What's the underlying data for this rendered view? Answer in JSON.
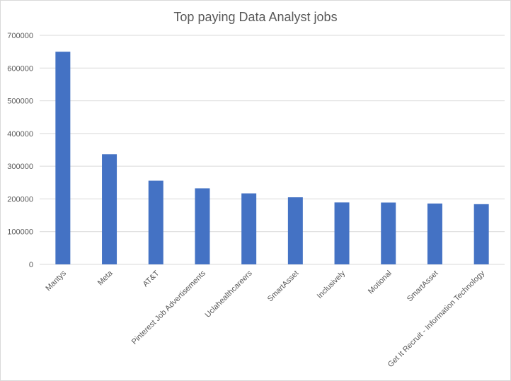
{
  "chart_data": {
    "type": "bar",
    "title": "Top paying Data Analyst jobs",
    "xlabel": "",
    "ylabel": "",
    "categories": [
      "Mantys",
      "Meta",
      "AT&T",
      "Pinterest Job Advertisements",
      "Uclahealthcareers",
      "SmartAsset",
      "Inclusively",
      "Motional",
      "SmartAsset",
      "Get It Recruit - Information Technology"
    ],
    "values": [
      650000,
      336500,
      255830,
      232423,
      217000,
      205000,
      189309,
      189000,
      186000,
      184000
    ],
    "ylim": [
      0,
      700000
    ],
    "yticks": [
      0,
      100000,
      200000,
      300000,
      400000,
      500000,
      600000,
      700000
    ],
    "ytick_labels": [
      "0",
      "100000",
      "200000",
      "300000",
      "400000",
      "500000",
      "600000",
      "700000"
    ],
    "grid": true,
    "legend": "none",
    "bar_color": "#4472c4",
    "gridline_color": "#d9d9d9"
  }
}
